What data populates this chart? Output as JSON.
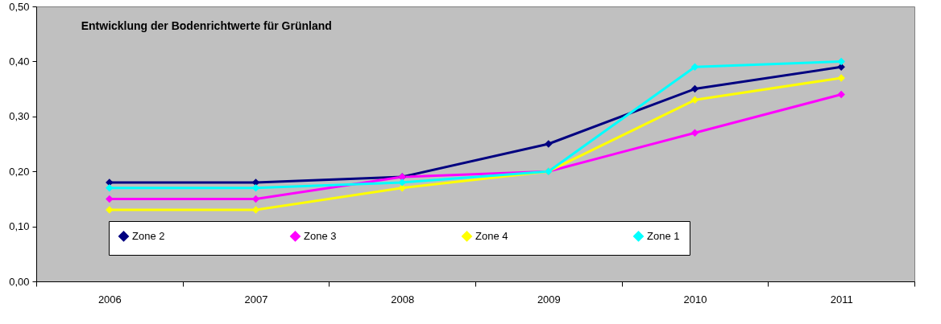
{
  "chart_data": {
    "type": "line",
    "title": "Entwicklung der Bodenrichtwerte für Grünland",
    "categories": [
      "2006",
      "2007",
      "2008",
      "2009",
      "2010",
      "2011"
    ],
    "series": [
      {
        "name": "Zone 2",
        "color": "#000080",
        "values": [
          0.18,
          0.18,
          0.19,
          0.25,
          0.35,
          0.39
        ]
      },
      {
        "name": "Zone 3",
        "color": "#ff00ff",
        "values": [
          0.15,
          0.15,
          0.19,
          0.2,
          0.27,
          0.34
        ]
      },
      {
        "name": "Zone 4",
        "color": "#ffff00",
        "values": [
          0.13,
          0.13,
          0.17,
          0.2,
          0.33,
          0.37
        ]
      },
      {
        "name": "Zone 1",
        "color": "#00ffff",
        "values": [
          0.17,
          0.17,
          0.18,
          0.2,
          0.39,
          0.4
        ]
      }
    ],
    "ylim": [
      0,
      0.5
    ],
    "yticks": [
      {
        "value": 0,
        "label": "0,00"
      },
      {
        "value": 0.1,
        "label": "0,10"
      },
      {
        "value": 0.2,
        "label": "0,20"
      },
      {
        "value": 0.3,
        "label": "0,30"
      },
      {
        "value": 0.4,
        "label": "0,40"
      },
      {
        "value": 0.5,
        "label": "0,50"
      }
    ],
    "grid": false,
    "legend": "bottom",
    "marker": "diamond",
    "line_style": "solid"
  }
}
